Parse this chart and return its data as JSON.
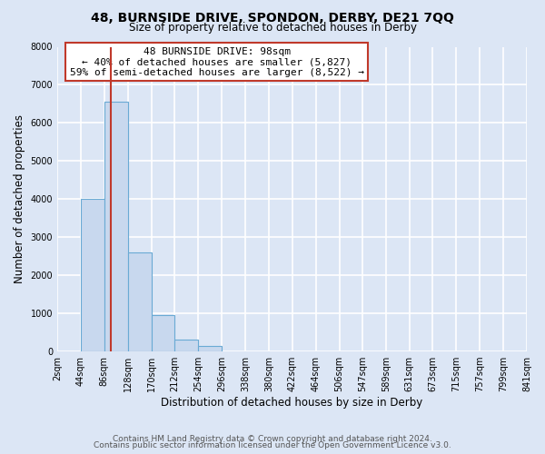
{
  "title": "48, BURNSIDE DRIVE, SPONDON, DERBY, DE21 7QQ",
  "subtitle": "Size of property relative to detached houses in Derby",
  "xlabel": "Distribution of detached houses by size in Derby",
  "ylabel": "Number of detached properties",
  "footnote1": "Contains HM Land Registry data © Crown copyright and database right 2024.",
  "footnote2": "Contains public sector information licensed under the Open Government Licence v3.0.",
  "bin_edges": [
    2,
    44,
    86,
    128,
    170,
    212,
    254,
    296,
    338,
    380,
    422,
    464,
    506,
    547,
    589,
    631,
    673,
    715,
    757,
    799,
    841
  ],
  "bar_heights": [
    0,
    4000,
    6550,
    2600,
    950,
    320,
    150,
    0,
    0,
    0,
    0,
    0,
    0,
    0,
    0,
    0,
    0,
    0,
    0,
    0
  ],
  "bar_color": "#c8d8ee",
  "bar_edgecolor": "#6aaad4",
  "property_size": 98,
  "vline_color": "#c0392b",
  "annotation_text": "48 BURNSIDE DRIVE: 98sqm\n← 40% of detached houses are smaller (5,827)\n59% of semi-detached houses are larger (8,522) →",
  "annotation_box_edgecolor": "#c0392b",
  "annotation_box_facecolor": "#ffffff",
  "ylim": [
    0,
    8000
  ],
  "yticks": [
    0,
    1000,
    2000,
    3000,
    4000,
    5000,
    6000,
    7000,
    8000
  ],
  "tick_labels": [
    "2sqm",
    "44sqm",
    "86sqm",
    "128sqm",
    "170sqm",
    "212sqm",
    "254sqm",
    "296sqm",
    "338sqm",
    "380sqm",
    "422sqm",
    "464sqm",
    "506sqm",
    "547sqm",
    "589sqm",
    "631sqm",
    "673sqm",
    "715sqm",
    "757sqm",
    "799sqm",
    "841sqm"
  ],
  "background_color": "#dce6f5",
  "plot_bg_color": "#dce6f5",
  "grid_color": "#ffffff",
  "title_fontsize": 10,
  "subtitle_fontsize": 8.5,
  "axis_label_fontsize": 8.5,
  "tick_fontsize": 7,
  "annotation_fontsize": 8,
  "footnote_fontsize": 6.5
}
